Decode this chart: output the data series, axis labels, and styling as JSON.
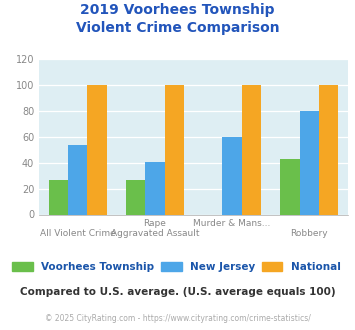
{
  "title": "2019 Voorhees Township\nViolent Crime Comparison",
  "cat_labels_line1": [
    "",
    "Rape",
    "Murder & Mans...",
    ""
  ],
  "cat_labels_line2": [
    "All Violent Crime",
    "Aggravated Assault",
    "",
    "Robbery"
  ],
  "voorhees": [
    27,
    27,
    0,
    43
  ],
  "nj": [
    54,
    41,
    60,
    80
  ],
  "national": [
    100,
    100,
    100,
    100
  ],
  "color_voorhees": "#6abf4b",
  "color_nj": "#4da6e8",
  "color_national": "#f5a623",
  "legend_labels": [
    "Voorhees Township",
    "New Jersey",
    "National"
  ],
  "ylim": [
    0,
    120
  ],
  "yticks": [
    0,
    20,
    40,
    60,
    80,
    100,
    120
  ],
  "background_color": "#deeef3",
  "note": "Compared to U.S. average. (U.S. average equals 100)",
  "footer": "© 2025 CityRating.com - https://www.cityrating.com/crime-statistics/",
  "title_color": "#2255bb",
  "label_color": "#888888",
  "legend_text_color": "#1a55aa",
  "note_color": "#333333",
  "footer_color": "#aaaaaa",
  "footer_link_color": "#4488cc"
}
